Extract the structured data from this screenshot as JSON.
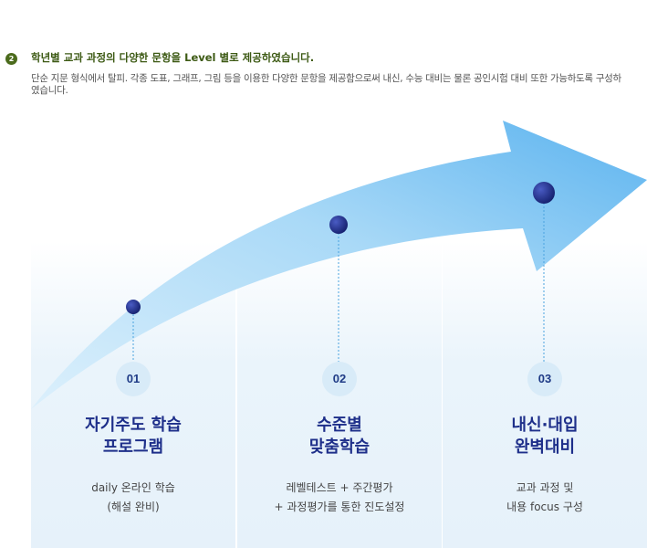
{
  "header": {
    "badge": "2",
    "headline": "학년별 교과 과정의 다양한 문항을 Level 별로 제공하였습니다.",
    "description": "단순 지문 형식에서 탈피. 각종 도표, 그래프, 그림 등을 이용한 다양한 문항을 제공함으로써 내신, 수능 대비는 물론 공인시험 대비 또한 가능하도록 구성하였습니다."
  },
  "steps": [
    {
      "number": "01",
      "title": "자기주도 학습\n프로그램",
      "subtitle": "daily 온라인 학습\n(해설 완비)"
    },
    {
      "number": "02",
      "title": "수준별\n맞춤학습",
      "subtitle": "레벨테스트 + 주간평가\n+ 과정평가를 통한 진도설정"
    },
    {
      "number": "03",
      "title": "내신·대입\n완벽대비",
      "subtitle": "교과 과정 및\n내용 focus 구성"
    }
  ],
  "colors": {
    "headline": "#3d5a14",
    "title": "#1e2f8a",
    "arrow_light": "#cfe9fb",
    "arrow_dark": "#5bb3ef",
    "dot": "#1f2d8c"
  }
}
